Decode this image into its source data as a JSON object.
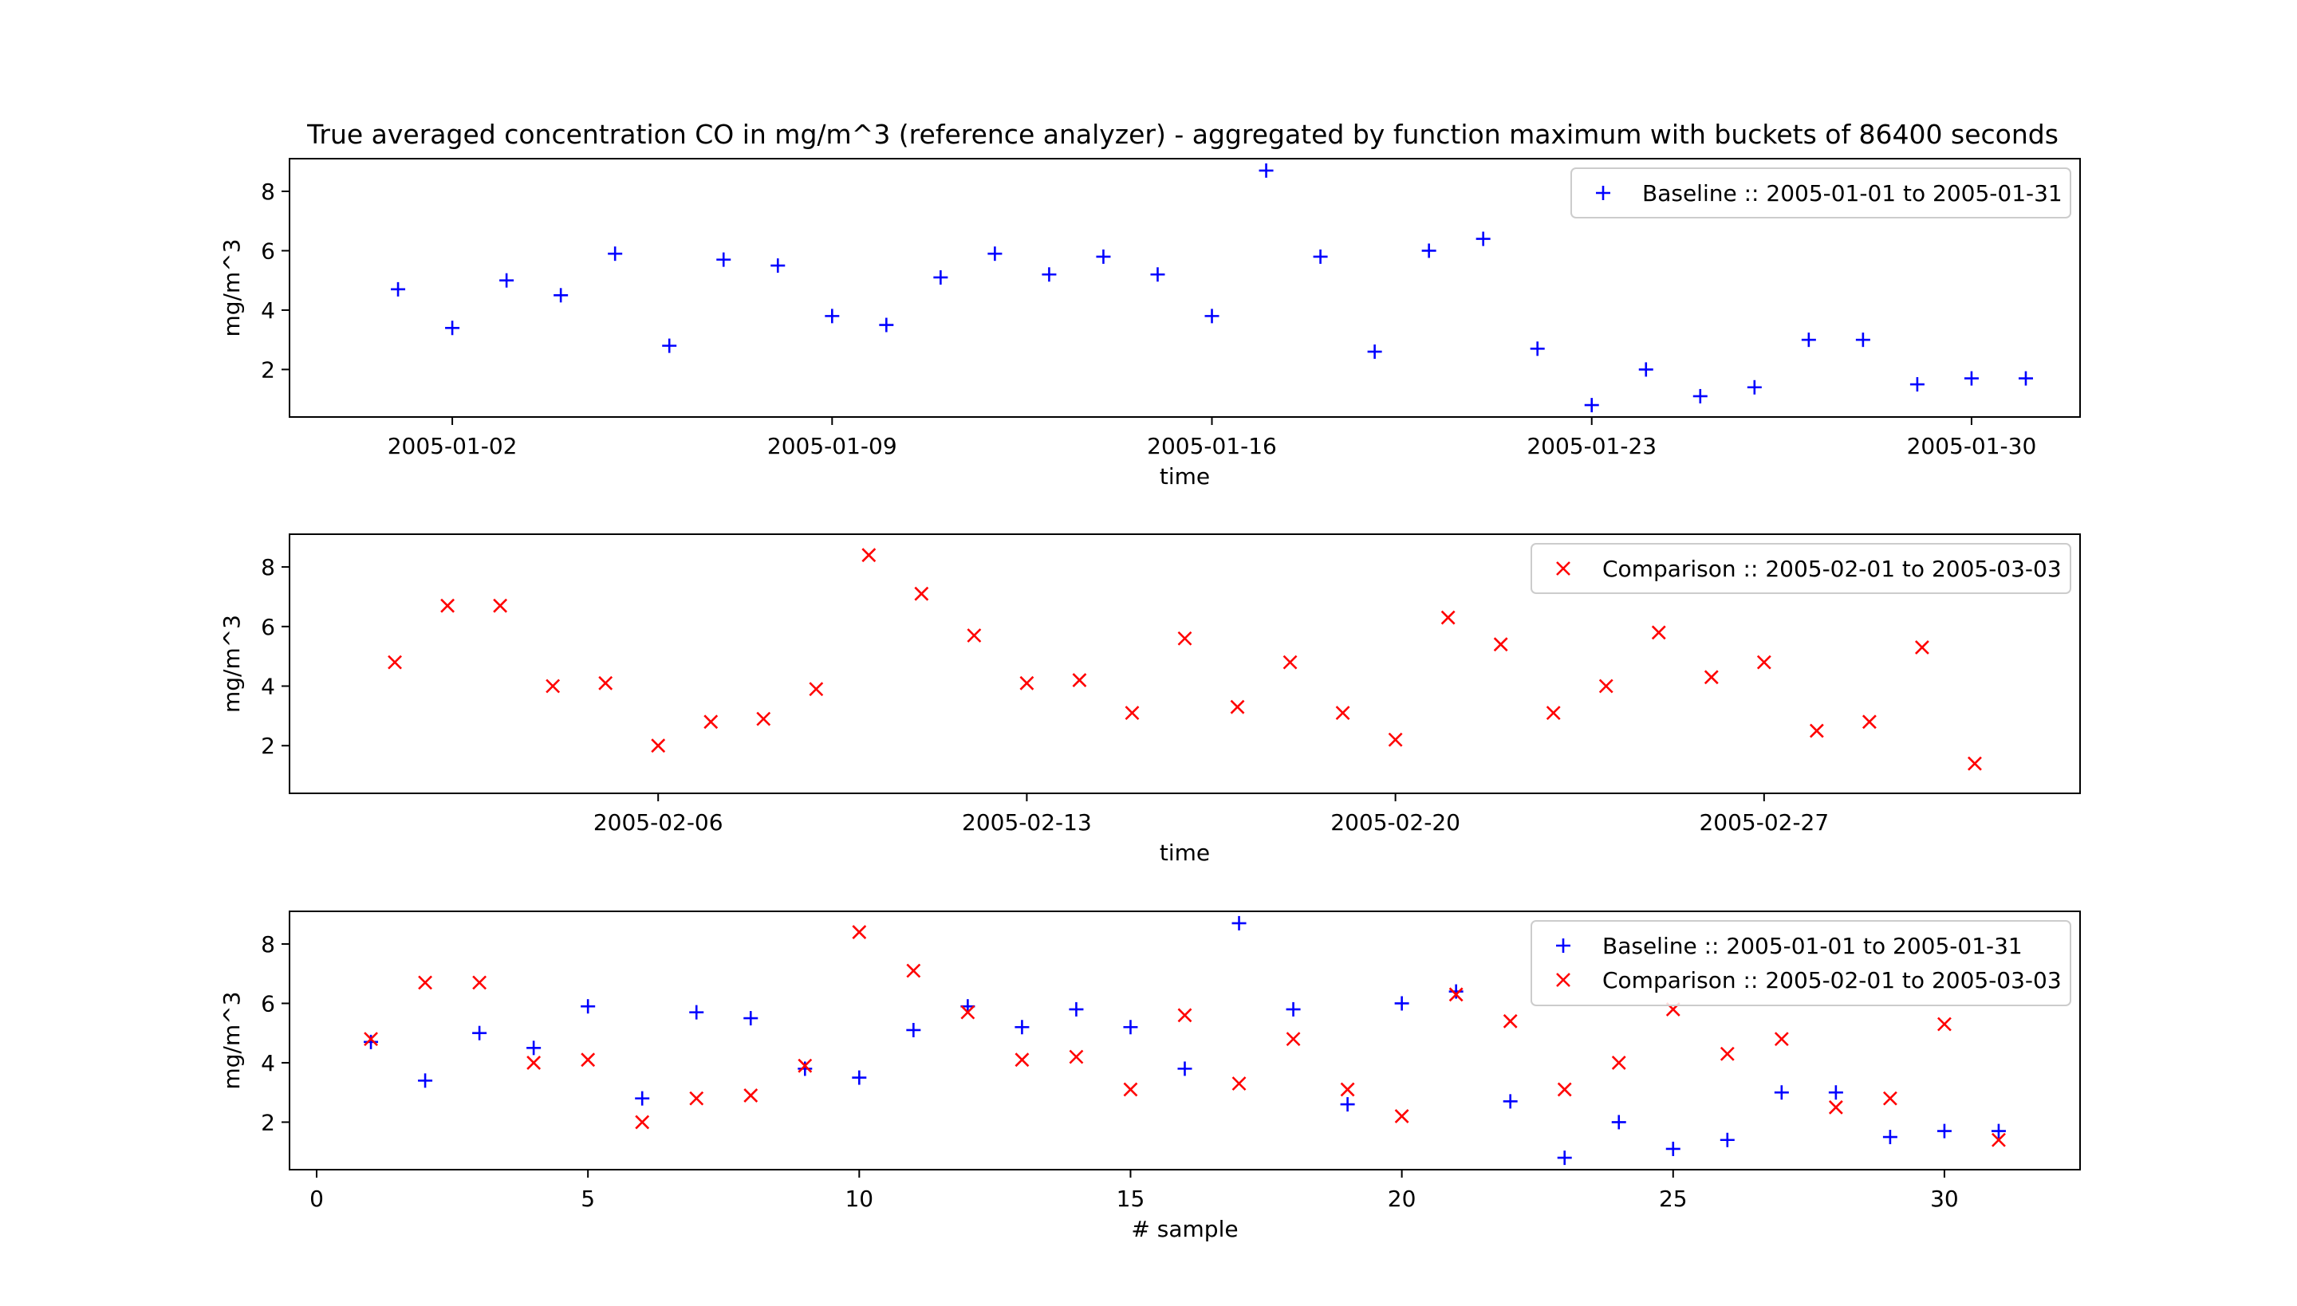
{
  "chart_data": [
    {
      "type": "scatter",
      "title": "True averaged concentration CO in mg/m^3 (reference analyzer) - aggregated by function maximum with buckets of 86400 seconds",
      "xlabel": "time",
      "ylabel": "mg/m^3",
      "x_type": "date",
      "xlim": [
        "2004-12-30",
        "2005-02-01"
      ],
      "ylim": [
        0.4,
        9.1
      ],
      "xticks": [
        "2005-01-02",
        "2005-01-09",
        "2005-01-16",
        "2005-01-23",
        "2005-01-30"
      ],
      "yticks": [
        2,
        4,
        6,
        8
      ],
      "legend": "top-right",
      "series": [
        {
          "name": "Baseline :: 2005-01-01 to 2005-01-31",
          "marker": "+",
          "color": "#0000ff",
          "x": [
            "2005-01-01",
            "2005-01-02",
            "2005-01-03",
            "2005-01-04",
            "2005-01-05",
            "2005-01-06",
            "2005-01-07",
            "2005-01-08",
            "2005-01-09",
            "2005-01-10",
            "2005-01-11",
            "2005-01-12",
            "2005-01-13",
            "2005-01-14",
            "2005-01-15",
            "2005-01-16",
            "2005-01-17",
            "2005-01-18",
            "2005-01-19",
            "2005-01-20",
            "2005-01-21",
            "2005-01-22",
            "2005-01-23",
            "2005-01-24",
            "2005-01-25",
            "2005-01-26",
            "2005-01-27",
            "2005-01-28",
            "2005-01-29",
            "2005-01-30",
            "2005-01-31"
          ],
          "y": [
            4.7,
            3.4,
            5.0,
            4.5,
            5.9,
            2.8,
            5.7,
            5.5,
            3.8,
            3.5,
            5.1,
            5.9,
            5.2,
            5.8,
            5.2,
            3.8,
            8.7,
            5.8,
            2.6,
            6.0,
            6.4,
            2.7,
            0.8,
            2.0,
            1.1,
            1.4,
            3.0,
            3.0,
            1.5,
            1.7,
            1.7
          ]
        }
      ]
    },
    {
      "type": "scatter",
      "title": "",
      "xlabel": "time",
      "ylabel": "mg/m^3",
      "x_type": "date",
      "xlim": [
        "2005-01-30",
        "2005-03-05"
      ],
      "ylim": [
        0.4,
        9.1
      ],
      "xticks": [
        "2005-02-06",
        "2005-02-13",
        "2005-02-20",
        "2005-02-27"
      ],
      "yticks": [
        2,
        4,
        6,
        8
      ],
      "legend": "top-right",
      "series": [
        {
          "name": "Comparison :: 2005-02-01 to 2005-03-03",
          "marker": "x",
          "color": "#ff0000",
          "x": [
            "2005-02-01",
            "2005-02-02",
            "2005-02-03",
            "2005-02-04",
            "2005-02-05",
            "2005-02-06",
            "2005-02-07",
            "2005-02-08",
            "2005-02-09",
            "2005-02-10",
            "2005-02-11",
            "2005-02-12",
            "2005-02-13",
            "2005-02-14",
            "2005-02-15",
            "2005-02-16",
            "2005-02-17",
            "2005-02-18",
            "2005-02-19",
            "2005-02-20",
            "2005-02-21",
            "2005-02-22",
            "2005-02-23",
            "2005-02-24",
            "2005-02-25",
            "2005-02-26",
            "2005-02-27",
            "2005-02-28",
            "2005-03-01",
            "2005-03-02",
            "2005-03-03"
          ],
          "y": [
            4.8,
            6.7,
            6.7,
            4.0,
            4.1,
            2.0,
            2.8,
            2.9,
            3.9,
            8.4,
            7.1,
            5.7,
            4.1,
            4.2,
            3.1,
            5.6,
            3.3,
            4.8,
            3.1,
            2.2,
            6.3,
            5.4,
            3.1,
            4.0,
            5.8,
            4.3,
            4.8,
            2.5,
            2.8,
            5.3,
            1.4
          ]
        }
      ]
    },
    {
      "type": "scatter",
      "title": "",
      "xlabel": "# sample",
      "ylabel": "mg/m^3",
      "x_type": "number",
      "xlim": [
        -0.5,
        32.5
      ],
      "ylim": [
        0.4,
        9.1
      ],
      "xticks": [
        0,
        5,
        10,
        15,
        20,
        25,
        30
      ],
      "yticks": [
        2,
        4,
        6,
        8
      ],
      "legend": "top-right",
      "series": [
        {
          "name": "Baseline :: 2005-01-01 to 2005-01-31",
          "marker": "+",
          "color": "#0000ff",
          "x": [
            1,
            2,
            3,
            4,
            5,
            6,
            7,
            8,
            9,
            10,
            11,
            12,
            13,
            14,
            15,
            16,
            17,
            18,
            19,
            20,
            21,
            22,
            23,
            24,
            25,
            26,
            27,
            28,
            29,
            30,
            31
          ],
          "y": [
            4.7,
            3.4,
            5.0,
            4.5,
            5.9,
            2.8,
            5.7,
            5.5,
            3.8,
            3.5,
            5.1,
            5.9,
            5.2,
            5.8,
            5.2,
            3.8,
            8.7,
            5.8,
            2.6,
            6.0,
            6.4,
            2.7,
            0.8,
            2.0,
            1.1,
            1.4,
            3.0,
            3.0,
            1.5,
            1.7,
            1.7
          ]
        },
        {
          "name": "Comparison :: 2005-02-01 to 2005-03-03",
          "marker": "x",
          "color": "#ff0000",
          "x": [
            1,
            2,
            3,
            4,
            5,
            6,
            7,
            8,
            9,
            10,
            11,
            12,
            13,
            14,
            15,
            16,
            17,
            18,
            19,
            20,
            21,
            22,
            23,
            24,
            25,
            26,
            27,
            28,
            29,
            30,
            31
          ],
          "y": [
            4.8,
            6.7,
            6.7,
            4.0,
            4.1,
            2.0,
            2.8,
            2.9,
            3.9,
            8.4,
            7.1,
            5.7,
            4.1,
            4.2,
            3.1,
            5.6,
            3.3,
            4.8,
            3.1,
            2.2,
            6.3,
            5.4,
            3.1,
            4.0,
            5.8,
            4.3,
            4.8,
            2.5,
            2.8,
            5.3,
            1.4
          ]
        }
      ]
    }
  ]
}
